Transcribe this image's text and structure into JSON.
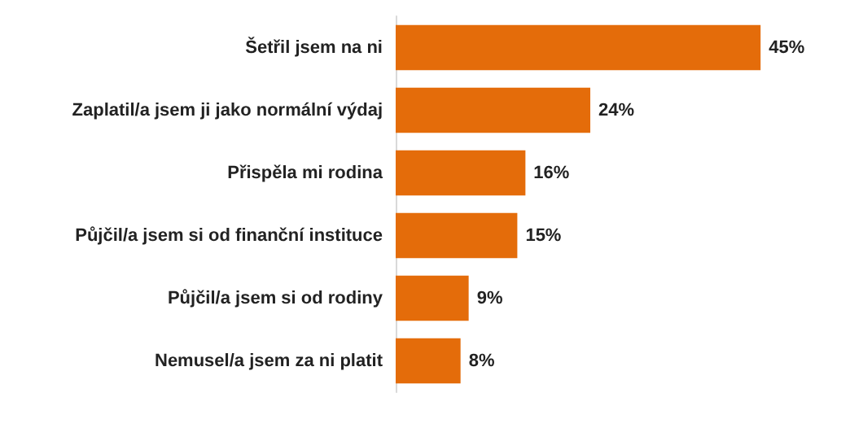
{
  "chart_data": {
    "type": "bar",
    "orientation": "horizontal",
    "categories": [
      "Šetřil jsem na ni",
      "Zaplatil/a jsem ji jako normální výdaj",
      "Přispěla mi rodina",
      "Půjčil/a jsem si od finanční instituce",
      "Půjčil/a jsem si od rodiny",
      "Nemusel/a jsem za ni platit"
    ],
    "values": [
      45,
      24,
      16,
      15,
      9,
      8
    ],
    "color": "#e46c0a",
    "value_labels": [
      "45%",
      "24%",
      "16%",
      "15%",
      "9%",
      "8%"
    ]
  }
}
